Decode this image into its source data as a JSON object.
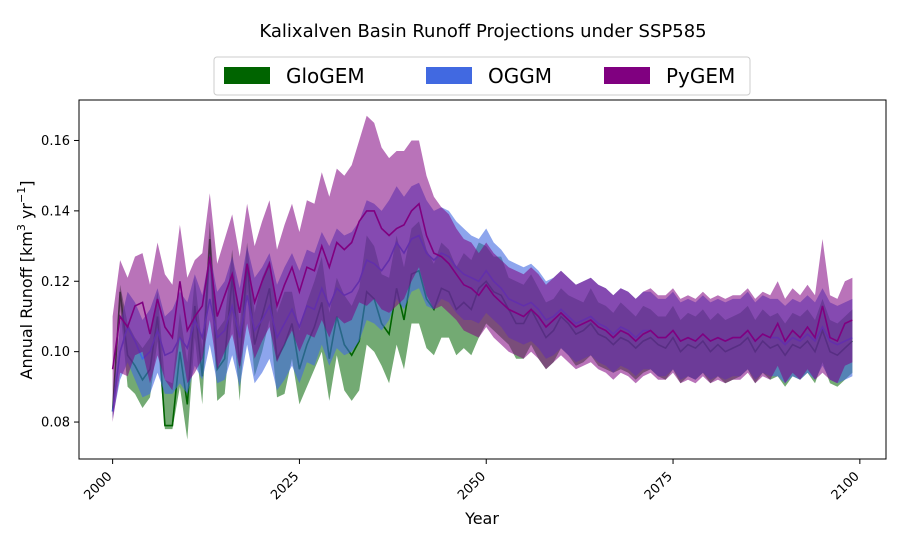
{
  "chart_data": {
    "type": "area",
    "title": "Kalixalven Basin Runoff Projections under SSP585",
    "xlabel": "Year",
    "ylabel": "Annual Runoff [km³ yr⁻¹]",
    "ylabel_parts": {
      "prefix": "Annual Runoff [km",
      "sup1": "3",
      "mid": " yr",
      "sup2": "−1",
      "suffix": "]"
    },
    "xlim": [
      1995.5,
      2103.5
    ],
    "ylim": [
      0.0695,
      0.1715
    ],
    "xticks": [
      2000,
      2025,
      2050,
      2075,
      2100
    ],
    "yticks": [
      0.08,
      0.1,
      0.12,
      0.14,
      0.16
    ],
    "xtick_labels": [
      "2000",
      "2025",
      "2050",
      "2075",
      "2100"
    ],
    "ytick_labels": [
      "0.08",
      "0.10",
      "0.12",
      "0.14",
      "0.16"
    ],
    "grid": false,
    "legend_position": "top-center",
    "x_start": 2000,
    "series": [
      {
        "name": "GloGEM",
        "color": "#006400",
        "fill_opacity": 0.55,
        "mean": [
          0.083,
          0.117,
          0.099,
          0.096,
          0.092,
          0.095,
          0.11,
          0.079,
          0.079,
          0.1,
          0.085,
          0.113,
          0.093,
          0.132,
          0.095,
          0.098,
          0.121,
          0.096,
          0.125,
          0.102,
          0.11,
          0.118,
          0.098,
          0.102,
          0.108,
          0.095,
          0.102,
          0.107,
          0.114,
          0.098,
          0.11,
          0.102,
          0.099,
          0.103,
          0.117,
          0.115,
          0.108,
          0.105,
          0.118,
          0.109,
          0.122,
          0.123,
          0.115,
          0.112,
          0.118,
          0.117,
          0.112,
          0.114,
          0.112,
          0.118,
          0.12,
          0.117,
          0.116,
          0.112,
          0.108,
          0.108,
          0.112,
          0.108,
          0.104,
          0.106,
          0.11,
          0.108,
          0.105,
          0.106,
          0.108,
          0.105,
          0.104,
          0.102,
          0.104,
          0.103,
          0.101,
          0.103,
          0.104,
          0.102,
          0.101,
          0.104,
          0.1,
          0.102,
          0.101,
          0.103,
          0.1,
          0.102,
          0.1,
          0.101,
          0.102,
          0.104,
          0.1,
          0.103,
          0.101,
          0.102,
          0.099,
          0.102,
          0.101,
          0.103,
          0.1,
          0.106,
          0.1,
          0.099,
          0.101,
          0.103
        ],
        "upper": [
          0.085,
          0.119,
          0.108,
          0.104,
          0.101,
          0.104,
          0.117,
          0.092,
          0.091,
          0.111,
          0.097,
          0.121,
          0.101,
          0.137,
          0.106,
          0.109,
          0.129,
          0.107,
          0.131,
          0.111,
          0.121,
          0.126,
          0.111,
          0.117,
          0.117,
          0.106,
          0.114,
          0.12,
          0.127,
          0.111,
          0.121,
          0.116,
          0.113,
          0.118,
          0.133,
          0.13,
          0.122,
          0.121,
          0.133,
          0.124,
          0.135,
          0.137,
          0.129,
          0.125,
          0.131,
          0.129,
          0.124,
          0.128,
          0.126,
          0.131,
          0.13,
          0.127,
          0.127,
          0.121,
          0.12,
          0.119,
          0.122,
          0.118,
          0.114,
          0.115,
          0.118,
          0.116,
          0.115,
          0.114,
          0.118,
          0.114,
          0.113,
          0.111,
          0.114,
          0.112,
          0.11,
          0.113,
          0.112,
          0.11,
          0.11,
          0.113,
          0.109,
          0.111,
          0.11,
          0.112,
          0.109,
          0.111,
          0.109,
          0.11,
          0.111,
          0.113,
          0.109,
          0.112,
          0.11,
          0.111,
          0.108,
          0.111,
          0.11,
          0.112,
          0.109,
          0.115,
          0.109,
          0.108,
          0.11,
          0.112
        ],
        "lower": [
          0.081,
          0.113,
          0.09,
          0.088,
          0.084,
          0.087,
          0.103,
          0.078,
          0.078,
          0.09,
          0.075,
          0.104,
          0.085,
          0.125,
          0.086,
          0.088,
          0.111,
          0.086,
          0.117,
          0.093,
          0.1,
          0.109,
          0.087,
          0.088,
          0.098,
          0.085,
          0.09,
          0.095,
          0.1,
          0.086,
          0.099,
          0.089,
          0.086,
          0.089,
          0.102,
          0.1,
          0.096,
          0.091,
          0.102,
          0.095,
          0.108,
          0.108,
          0.101,
          0.099,
          0.104,
          0.104,
          0.099,
          0.101,
          0.099,
          0.104,
          0.108,
          0.106,
          0.104,
          0.102,
          0.098,
          0.098,
          0.102,
          0.098,
          0.095,
          0.097,
          0.101,
          0.099,
          0.096,
          0.097,
          0.099,
          0.096,
          0.095,
          0.094,
          0.095,
          0.094,
          0.092,
          0.094,
          0.095,
          0.093,
          0.092,
          0.095,
          0.091,
          0.093,
          0.092,
          0.094,
          0.091,
          0.093,
          0.091,
          0.092,
          0.093,
          0.095,
          0.091,
          0.094,
          0.092,
          0.093,
          0.09,
          0.093,
          0.092,
          0.094,
          0.091,
          0.097,
          0.091,
          0.09,
          0.092,
          0.094
        ]
      },
      {
        "name": "OGGM",
        "color": "#4169E1",
        "fill_opacity": 0.6,
        "mean": [
          0.083,
          0.1,
          0.107,
          0.103,
          0.098,
          0.1,
          0.106,
          0.099,
          0.1,
          0.104,
          0.101,
          0.109,
          0.104,
          0.115,
          0.104,
          0.106,
          0.113,
          0.104,
          0.116,
          0.106,
          0.109,
          0.113,
          0.104,
          0.108,
          0.112,
          0.107,
          0.113,
          0.112,
          0.118,
          0.113,
          0.118,
          0.116,
          0.117,
          0.12,
          0.126,
          0.125,
          0.123,
          0.126,
          0.131,
          0.128,
          0.132,
          0.133,
          0.128,
          0.126,
          0.128,
          0.127,
          0.124,
          0.122,
          0.121,
          0.12,
          0.123,
          0.12,
          0.118,
          0.115,
          0.114,
          0.113,
          0.114,
          0.112,
          0.109,
          0.11,
          0.112,
          0.11,
          0.108,
          0.109,
          0.11,
          0.108,
          0.107,
          0.105,
          0.107,
          0.106,
          0.104,
          0.106,
          0.106,
          0.104,
          0.104,
          0.106,
          0.103,
          0.104,
          0.103,
          0.105,
          0.103,
          0.104,
          0.103,
          0.104,
          0.104,
          0.106,
          0.103,
          0.105,
          0.104,
          0.104,
          0.102,
          0.104,
          0.103,
          0.105,
          0.103,
          0.107,
          0.103,
          0.102,
          0.103,
          0.104
        ],
        "upper": [
          0.085,
          0.108,
          0.117,
          0.114,
          0.109,
          0.112,
          0.118,
          0.11,
          0.112,
          0.117,
          0.114,
          0.122,
          0.116,
          0.128,
          0.117,
          0.12,
          0.127,
          0.118,
          0.13,
          0.121,
          0.124,
          0.128,
          0.119,
          0.124,
          0.128,
          0.123,
          0.129,
          0.128,
          0.134,
          0.13,
          0.135,
          0.133,
          0.134,
          0.137,
          0.143,
          0.142,
          0.14,
          0.143,
          0.147,
          0.144,
          0.147,
          0.148,
          0.143,
          0.14,
          0.141,
          0.14,
          0.137,
          0.135,
          0.133,
          0.132,
          0.135,
          0.131,
          0.129,
          0.126,
          0.125,
          0.124,
          0.125,
          0.123,
          0.12,
          0.121,
          0.123,
          0.121,
          0.119,
          0.12,
          0.121,
          0.119,
          0.118,
          0.116,
          0.118,
          0.117,
          0.115,
          0.117,
          0.117,
          0.115,
          0.115,
          0.117,
          0.114,
          0.115,
          0.114,
          0.116,
          0.114,
          0.115,
          0.114,
          0.115,
          0.115,
          0.117,
          0.114,
          0.116,
          0.115,
          0.115,
          0.113,
          0.115,
          0.114,
          0.116,
          0.114,
          0.118,
          0.114,
          0.113,
          0.114,
          0.115
        ],
        "lower": [
          0.081,
          0.092,
          0.097,
          0.092,
          0.087,
          0.088,
          0.094,
          0.088,
          0.088,
          0.091,
          0.088,
          0.096,
          0.092,
          0.102,
          0.091,
          0.092,
          0.099,
          0.09,
          0.102,
          0.091,
          0.094,
          0.098,
          0.089,
          0.092,
          0.096,
          0.091,
          0.097,
          0.096,
          0.102,
          0.096,
          0.101,
          0.099,
          0.1,
          0.103,
          0.109,
          0.108,
          0.106,
          0.109,
          0.115,
          0.112,
          0.117,
          0.118,
          0.113,
          0.112,
          0.115,
          0.114,
          0.111,
          0.109,
          0.109,
          0.108,
          0.111,
          0.109,
          0.107,
          0.104,
          0.103,
          0.102,
          0.103,
          0.101,
          0.098,
          0.099,
          0.101,
          0.099,
          0.097,
          0.098,
          0.099,
          0.097,
          0.096,
          0.094,
          0.096,
          0.095,
          0.093,
          0.095,
          0.095,
          0.093,
          0.093,
          0.095,
          0.092,
          0.093,
          0.092,
          0.094,
          0.092,
          0.093,
          0.092,
          0.093,
          0.093,
          0.095,
          0.092,
          0.094,
          0.093,
          0.093,
          0.091,
          0.093,
          0.092,
          0.094,
          0.092,
          0.096,
          0.092,
          0.091,
          0.092,
          0.093
        ]
      },
      {
        "name": "PyGEM",
        "color": "#800080",
        "fill_opacity": 0.55,
        "mean": [
          0.095,
          0.11,
          0.107,
          0.113,
          0.114,
          0.105,
          0.115,
          0.107,
          0.104,
          0.12,
          0.106,
          0.11,
          0.113,
          0.127,
          0.11,
          0.116,
          0.122,
          0.111,
          0.125,
          0.114,
          0.12,
          0.125,
          0.113,
          0.119,
          0.124,
          0.117,
          0.124,
          0.123,
          0.13,
          0.124,
          0.131,
          0.129,
          0.131,
          0.137,
          0.14,
          0.14,
          0.135,
          0.133,
          0.135,
          0.136,
          0.14,
          0.142,
          0.133,
          0.128,
          0.127,
          0.125,
          0.122,
          0.119,
          0.118,
          0.116,
          0.119,
          0.116,
          0.114,
          0.112,
          0.111,
          0.11,
          0.112,
          0.11,
          0.107,
          0.109,
          0.111,
          0.109,
          0.107,
          0.108,
          0.109,
          0.107,
          0.106,
          0.104,
          0.106,
          0.105,
          0.103,
          0.105,
          0.106,
          0.104,
          0.104,
          0.106,
          0.103,
          0.104,
          0.103,
          0.105,
          0.103,
          0.104,
          0.103,
          0.104,
          0.104,
          0.106,
          0.103,
          0.105,
          0.104,
          0.108,
          0.103,
          0.106,
          0.104,
          0.107,
          0.104,
          0.113,
          0.104,
          0.103,
          0.108,
          0.109
        ],
        "upper": [
          0.11,
          0.126,
          0.121,
          0.127,
          0.128,
          0.119,
          0.131,
          0.122,
          0.119,
          0.136,
          0.121,
          0.126,
          0.128,
          0.145,
          0.125,
          0.132,
          0.139,
          0.127,
          0.142,
          0.13,
          0.137,
          0.143,
          0.129,
          0.136,
          0.142,
          0.134,
          0.143,
          0.142,
          0.151,
          0.144,
          0.152,
          0.15,
          0.153,
          0.16,
          0.167,
          0.165,
          0.158,
          0.155,
          0.157,
          0.157,
          0.16,
          0.16,
          0.15,
          0.144,
          0.141,
          0.139,
          0.135,
          0.132,
          0.131,
          0.128,
          0.131,
          0.128,
          0.126,
          0.124,
          0.123,
          0.122,
          0.124,
          0.122,
          0.119,
          0.121,
          0.123,
          0.121,
          0.119,
          0.12,
          0.121,
          0.119,
          0.118,
          0.116,
          0.118,
          0.117,
          0.115,
          0.117,
          0.118,
          0.116,
          0.116,
          0.118,
          0.115,
          0.116,
          0.115,
          0.117,
          0.115,
          0.116,
          0.115,
          0.116,
          0.116,
          0.118,
          0.115,
          0.117,
          0.116,
          0.12,
          0.115,
          0.118,
          0.116,
          0.119,
          0.116,
          0.132,
          0.116,
          0.115,
          0.12,
          0.121
        ],
        "lower": [
          0.08,
          0.094,
          0.093,
          0.099,
          0.1,
          0.091,
          0.099,
          0.092,
          0.089,
          0.104,
          0.091,
          0.094,
          0.098,
          0.109,
          0.095,
          0.1,
          0.105,
          0.095,
          0.108,
          0.098,
          0.103,
          0.107,
          0.097,
          0.102,
          0.106,
          0.1,
          0.105,
          0.104,
          0.109,
          0.104,
          0.11,
          0.108,
          0.109,
          0.114,
          0.113,
          0.115,
          0.112,
          0.111,
          0.113,
          0.115,
          0.12,
          0.124,
          0.116,
          0.112,
          0.113,
          0.111,
          0.109,
          0.106,
          0.105,
          0.104,
          0.107,
          0.104,
          0.102,
          0.1,
          0.099,
          0.098,
          0.1,
          0.098,
          0.095,
          0.097,
          0.099,
          0.097,
          0.095,
          0.096,
          0.097,
          0.095,
          0.094,
          0.092,
          0.094,
          0.093,
          0.091,
          0.093,
          0.094,
          0.092,
          0.092,
          0.094,
          0.091,
          0.092,
          0.091,
          0.093,
          0.091,
          0.092,
          0.091,
          0.092,
          0.092,
          0.094,
          0.091,
          0.093,
          0.092,
          0.096,
          0.091,
          0.094,
          0.092,
          0.095,
          0.092,
          0.094,
          0.092,
          0.091,
          0.096,
          0.097
        ]
      }
    ]
  }
}
